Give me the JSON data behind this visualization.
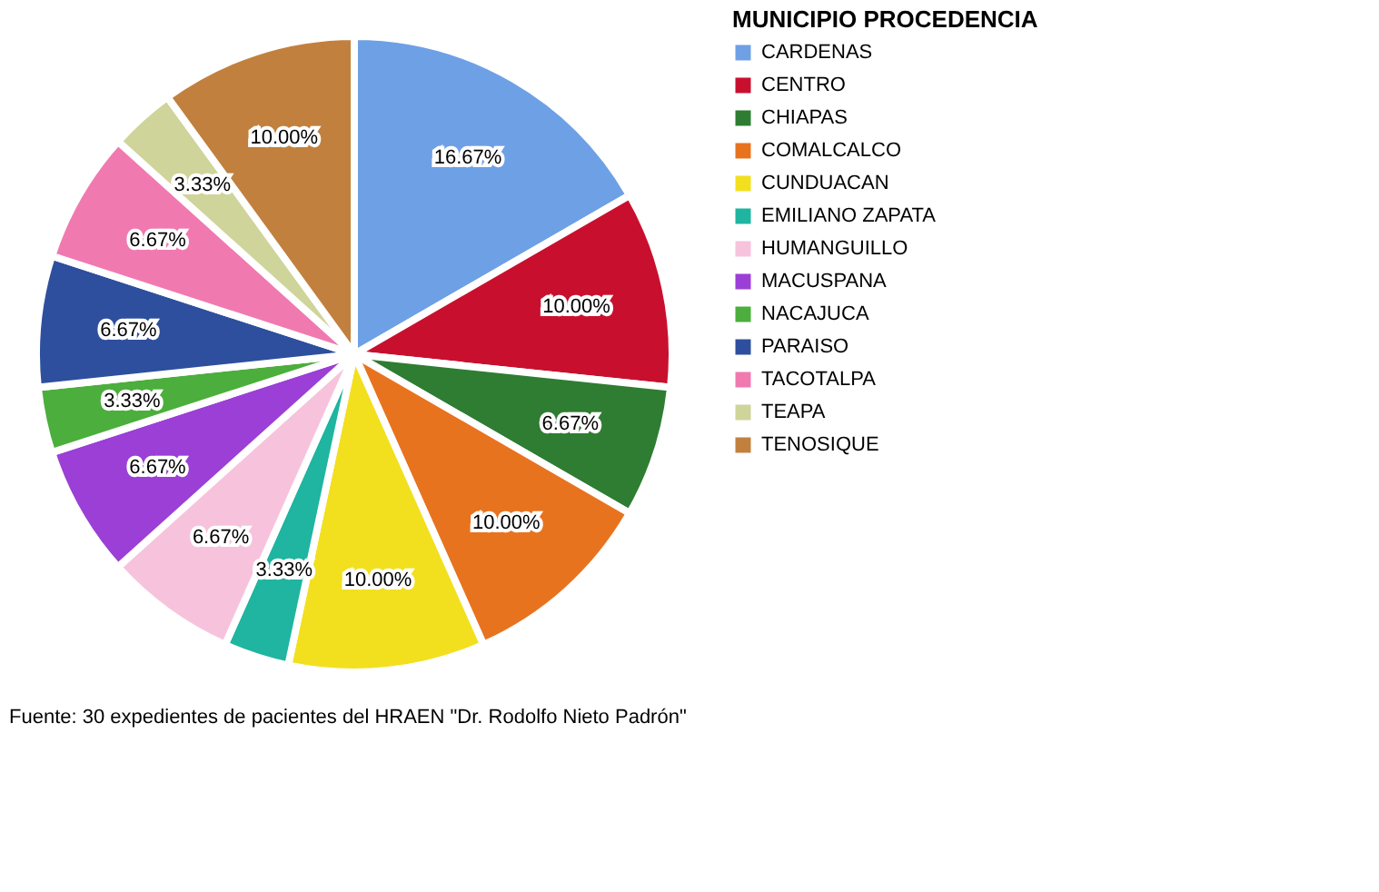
{
  "chart_data": {
    "type": "pie",
    "categories": [
      "CARDENAS",
      "CENTRO",
      "CHIAPAS",
      "COMALCALCO",
      "CUNDUACAN",
      "EMILIANO ZAPATA",
      "HUMANGUILLO",
      "MACUSPANA",
      "NACAJUCA",
      "PARAISO",
      "TACOTALPA",
      "TEAPA",
      "TENOSIQUE"
    ],
    "values": [
      16.67,
      10.0,
      6.67,
      10.0,
      10.0,
      3.33,
      6.67,
      6.67,
      3.33,
      6.67,
      6.67,
      3.33,
      10.0
    ],
    "colors": [
      "#6ea0e6",
      "#c8102e",
      "#2e7d32",
      "#e8731f",
      "#f2e01f",
      "#1fb5a0",
      "#f7c3dc",
      "#9b3fd6",
      "#4cae3c",
      "#2e4f9e",
      "#f07ab0",
      "#cfd49a",
      "#c2803e"
    ],
    "value_labels": [
      "16.67%",
      "10.00%",
      "6.67%",
      "10.00%",
      "10.00%",
      "3.33%",
      "6.67%",
      "6.67%",
      "3.33%",
      "6.67%",
      "6.67%",
      "3.33%",
      "10.00%"
    ],
    "legend_title": "MUNICIPIO PROCEDENCIA",
    "legend": "right",
    "annotations": [
      "Fuente: 30 expedientes de pacientes del HRAEN \"Dr. Rodolfo Nieto Padrón\""
    ]
  }
}
